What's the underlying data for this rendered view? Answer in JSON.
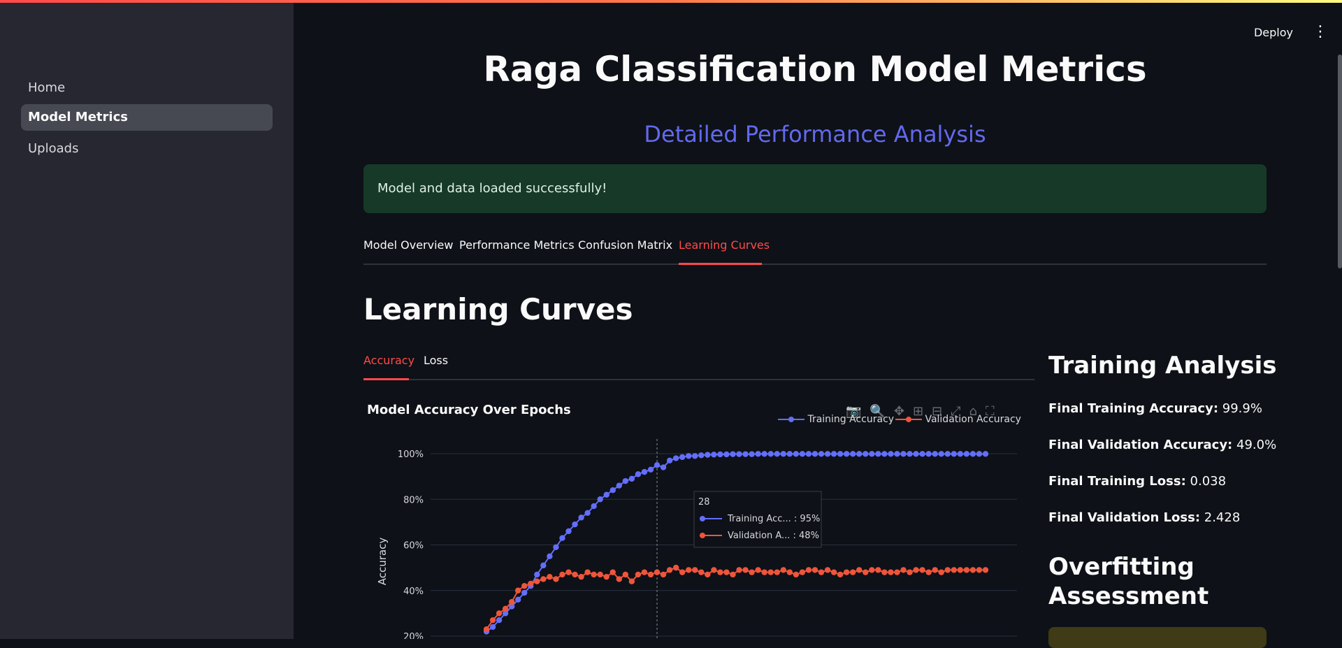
{
  "sidebar": {
    "items": [
      {
        "label": "Home",
        "active": false
      },
      {
        "label": "Model Metrics",
        "active": true
      },
      {
        "label": "Uploads",
        "active": false
      }
    ]
  },
  "header": {
    "deploy_label": "Deploy",
    "menu_icon": "kebab-menu-icon"
  },
  "page": {
    "title": "Raga Classification Model Metrics",
    "subtitle": "Detailed Performance Analysis",
    "success_message": "Model and data loaded successfully!"
  },
  "tabs": [
    {
      "label": "Model Overview"
    },
    {
      "label": "Performance Metrics"
    },
    {
      "label": "Confusion Matrix"
    },
    {
      "label": "Learning Curves",
      "active": true
    }
  ],
  "section": {
    "title": "Learning Curves"
  },
  "subtabs": [
    {
      "label": "Accuracy",
      "active": true
    },
    {
      "label": "Loss"
    }
  ],
  "chart": {
    "title": "Model Accuracy Over Epochs",
    "modebar_icons": [
      "camera-icon",
      "zoom-icon",
      "pan-icon",
      "zoom-in-icon",
      "zoom-out-icon",
      "autoscale-icon",
      "reset-axes-icon",
      "fullscreen-icon"
    ],
    "tooltip": {
      "header": "28",
      "rows": [
        {
          "label": "Training Acc... : 95%"
        },
        {
          "label": "Validation A... : 48%"
        }
      ]
    }
  },
  "chart_data": {
    "type": "line",
    "title": "Model Accuracy Over Epochs",
    "ylabel": "Accuracy",
    "xlabel": "",
    "yticks": [
      "100%",
      "80%",
      "60%",
      "40%",
      "20%"
    ],
    "ylim": [
      20,
      100
    ],
    "legend_position": "top-right",
    "grid": true,
    "x": [
      1,
      2,
      3,
      4,
      5,
      6,
      7,
      8,
      9,
      10,
      11,
      12,
      13,
      14,
      15,
      16,
      17,
      18,
      19,
      20,
      21,
      22,
      23,
      24,
      25,
      26,
      27,
      28,
      29,
      30,
      31,
      32,
      33,
      34,
      35,
      36,
      37,
      38,
      39,
      40,
      41,
      42,
      43,
      44,
      45,
      46,
      47,
      48,
      49,
      50,
      51,
      52,
      53,
      54,
      55,
      56,
      57,
      58,
      59,
      60,
      61,
      62,
      63,
      64,
      65,
      66,
      67,
      68,
      69,
      70,
      71,
      72,
      73,
      74,
      75,
      76,
      77,
      78,
      79,
      80
    ],
    "series": [
      {
        "name": "Training Accuracy",
        "color": "#636efa",
        "values": [
          22,
          24,
          27,
          30,
          33,
          36,
          39,
          42,
          47,
          51,
          55,
          59,
          63,
          66,
          69,
          72,
          74,
          77,
          80,
          82,
          84,
          86,
          88,
          89,
          91,
          92,
          93,
          95,
          94,
          97,
          98,
          98.5,
          99,
          99,
          99.3,
          99.5,
          99.6,
          99.7,
          99.7,
          99.8,
          99.8,
          99.8,
          99.8,
          99.9,
          99.9,
          99.9,
          99.9,
          99.9,
          99.9,
          99.9,
          99.9,
          99.9,
          99.9,
          99.9,
          99.9,
          99.9,
          99.9,
          99.9,
          99.9,
          99.9,
          99.9,
          99.9,
          99.9,
          99.9,
          99.9,
          99.9,
          99.9,
          99.9,
          99.9,
          99.9,
          99.9,
          99.9,
          99.9,
          99.9,
          99.9,
          99.9,
          99.9,
          99.9,
          99.9,
          99.9
        ]
      },
      {
        "name": "Validation Accuracy",
        "color": "#ef553b",
        "values": [
          23,
          27,
          30,
          32,
          35,
          40,
          42,
          43,
          44,
          45,
          46,
          45,
          47,
          48,
          47,
          46,
          48,
          47,
          47,
          46,
          48,
          45,
          47,
          44,
          47,
          48,
          47,
          48,
          47,
          49,
          50,
          48,
          49,
          49,
          48,
          47,
          49,
          48,
          48,
          47,
          49,
          49,
          48,
          49,
          48,
          48,
          48,
          49,
          48,
          47,
          48,
          49,
          49,
          48,
          49,
          48,
          47,
          48,
          48,
          49,
          48,
          49,
          49,
          48,
          48,
          48,
          49,
          48,
          49,
          49,
          48,
          49,
          48,
          49,
          49,
          49,
          49,
          49,
          49,
          49
        ]
      }
    ]
  },
  "analysis": {
    "title": "Training Analysis",
    "stats": [
      {
        "label": "Final Training Accuracy:",
        "value": "99.9%"
      },
      {
        "label": "Final Validation Accuracy:",
        "value": "49.0%"
      },
      {
        "label": "Final Training Loss:",
        "value": "0.038"
      },
      {
        "label": "Final Validation Loss:",
        "value": "2.428"
      }
    ],
    "overfitting_title": "Overfitting Assessment"
  }
}
